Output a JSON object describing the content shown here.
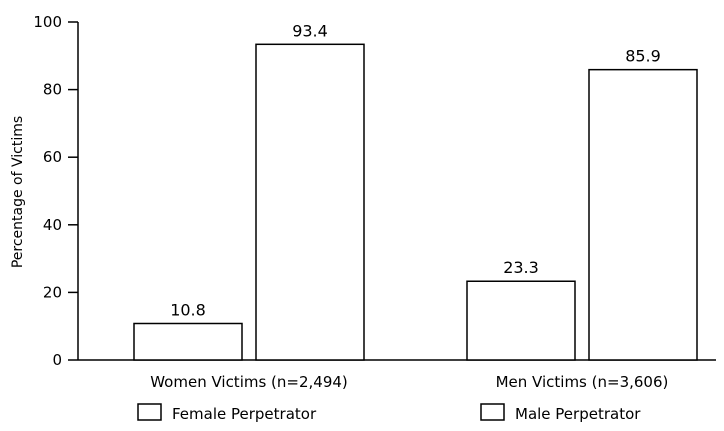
{
  "chart_data": {
    "type": "bar",
    "title": "",
    "xlabel": "",
    "ylabel": "Percentage of Victims",
    "ylim": [
      0,
      100
    ],
    "yticks": [
      0,
      20,
      40,
      60,
      80,
      100
    ],
    "grid": false,
    "legend_position": "bottom",
    "categories": [
      "Women Victims (n=2,494)",
      "Men Victims (n=3,606)"
    ],
    "series": [
      {
        "name": "Female Perpetrator",
        "values": [
          10.8,
          23.3
        ],
        "color": "#ffffff"
      },
      {
        "name": "Male Perpetrator",
        "values": [
          93.4,
          85.9
        ],
        "color": "#ffffff"
      }
    ],
    "value_labels": [
      [
        "10.8",
        "23.3"
      ],
      [
        "93.4",
        "85.9"
      ]
    ]
  }
}
